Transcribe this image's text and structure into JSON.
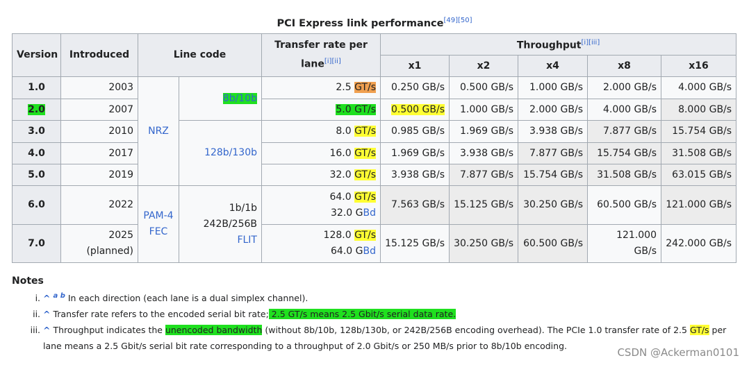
{
  "caption": {
    "text": "PCI Express link performance",
    "refs": "[49][50]"
  },
  "table": {
    "headers": {
      "version": "Version",
      "introduced": "Introduced",
      "line_code": "Line code",
      "transfer_rate": "Transfer rate per lane",
      "transfer_refs": "[i][ii]",
      "throughput": "Throughput",
      "throughput_refs": "[i][iii]",
      "lanes": [
        "x1",
        "x2",
        "x4",
        "x8",
        "x16"
      ]
    },
    "line_codes": {
      "modulation": [
        [
          "NRZ"
        ],
        [
          "PAM-4",
          "FEC"
        ]
      ],
      "encoding": [
        [
          "8b/10b"
        ],
        [
          "128b/130b"
        ],
        [
          "1b/1b",
          "242B/256B",
          "FLIT"
        ]
      ]
    },
    "rows": [
      {
        "version": "1.0",
        "introduced": "2003",
        "rate_value": "2.5",
        "rate_unit": "GT/s",
        "throughput": [
          "0.250 GB/s",
          "0.500 GB/s",
          "1.000 GB/s",
          "2.000 GB/s",
          "4.000 GB/s"
        ]
      },
      {
        "version": "2.0",
        "introduced": "2007",
        "rate_value": "5.0",
        "rate_unit": "GT/s",
        "throughput": [
          "0.500 GB/s",
          "1.000 GB/s",
          "2.000 GB/s",
          "4.000 GB/s",
          "8.000 GB/s"
        ]
      },
      {
        "version": "3.0",
        "introduced": "2010",
        "rate_value": "8.0",
        "rate_unit": "GT/s",
        "throughput": [
          "0.985 GB/s",
          "1.969 GB/s",
          "3.938 GB/s",
          "7.877 GB/s",
          "15.754 GB/s"
        ]
      },
      {
        "version": "4.0",
        "introduced": "2017",
        "rate_value": "16.0",
        "rate_unit": "GT/s",
        "throughput": [
          "1.969 GB/s",
          "3.938 GB/s",
          "7.877 GB/s",
          "15.754 GB/s",
          "31.508 GB/s"
        ]
      },
      {
        "version": "5.0",
        "introduced": "2019",
        "rate_value": "32.0",
        "rate_unit": "GT/s",
        "throughput": [
          "3.938 GB/s",
          "7.877 GB/s",
          "15.754 GB/s",
          "31.508 GB/s",
          "63.015 GB/s"
        ]
      },
      {
        "version": "6.0",
        "introduced": "2022",
        "rate_value": "64.0",
        "rate_unit": "GT/s",
        "symbol_value": "32.0 G",
        "symbol_unit": "Bd",
        "throughput": [
          "7.563 GB/s",
          "15.125 GB/s",
          "30.250 GB/s",
          "60.500 GB/s",
          "121.000 GB/s"
        ]
      },
      {
        "version": "7.0",
        "introduced": "2025",
        "introduced_note": "(planned)",
        "rate_value": "128.0",
        "rate_unit": "GT/s",
        "symbol_value": "64.0 G",
        "symbol_unit": "Bd",
        "throughput": [
          "15.125 GB/s",
          "30.250 GB/s",
          "60.500 GB/s",
          "121.000 GB/s",
          "242.000 GB/s"
        ]
      }
    ]
  },
  "notes": {
    "heading": "Notes",
    "caret": "^",
    "items": [
      {
        "backrefs": "a b",
        "text": "In each direction (each lane is a dual simplex channel)."
      },
      {
        "text": "Transfer rate refers to the encoded serial bit rate;",
        "highlight": " 2.5 GT/s means 2.5 Gbit/s serial data rate."
      },
      {
        "text": "Throughput indicates the ",
        "highlight": "unencoded bandwidth",
        "text2": " (without 8b/10b, 128b/130b, or 242B/256B encoding overhead). The PCIe 1.0 transfer rate of 2.5 ",
        "highlight2": "GT/s",
        "text3": " per lane means a 2.5 Gbit/s serial bit rate corresponding to a throughput of 2.0 Gbit/s or 250 MB/s prior to 8b/10b encoding."
      }
    ]
  },
  "watermark": "CSDN @Ackerman0101"
}
